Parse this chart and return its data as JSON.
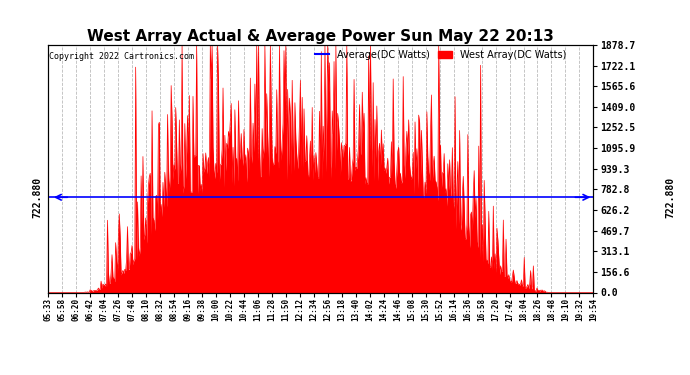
{
  "title": "West Array Actual & Average Power Sun May 22 20:13",
  "copyright": "Copyright 2022 Cartronics.com",
  "legend_avg": "Average(DC Watts)",
  "legend_west": "West Array(DC Watts)",
  "avg_value": 722.88,
  "avg_label": "722.880",
  "ymax": 1878.7,
  "ymin": 0.0,
  "yticks": [
    0.0,
    156.6,
    313.1,
    469.7,
    626.2,
    782.8,
    939.3,
    1095.9,
    1252.5,
    1409.0,
    1565.6,
    1722.1,
    1878.7
  ],
  "bar_color": "#FF0000",
  "avg_line_color": "#0000FF",
  "title_color": "#000000",
  "copyright_color": "#000000",
  "legend_avg_color": "#0000FF",
  "legend_west_color": "#FF0000",
  "background_color": "#FFFFFF",
  "grid_color": "#AAAAAA",
  "xtick_labels": [
    "05:33",
    "05:58",
    "06:20",
    "06:42",
    "07:04",
    "07:26",
    "07:48",
    "08:10",
    "08:32",
    "08:54",
    "09:16",
    "09:38",
    "10:00",
    "10:22",
    "10:44",
    "11:06",
    "11:28",
    "11:50",
    "12:12",
    "12:34",
    "12:56",
    "13:18",
    "13:40",
    "14:02",
    "14:24",
    "14:46",
    "15:08",
    "15:30",
    "15:52",
    "16:14",
    "16:36",
    "16:58",
    "17:20",
    "17:42",
    "18:04",
    "18:26",
    "18:48",
    "19:10",
    "19:32",
    "19:54"
  ],
  "n_points": 600
}
